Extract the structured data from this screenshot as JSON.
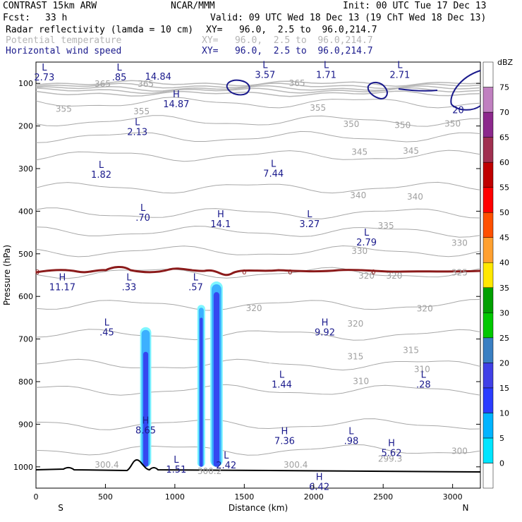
{
  "header": {
    "model": "CONTRAST 15km ARW",
    "fcst_label": "Fcst:",
    "fcst_value": "33 h",
    "center": "NCAR/MMM",
    "init": "Init: 00 UTC Tue 17 Dec 13",
    "valid": "Valid: 09 UTC Wed 18 Dec 13 (19 ChT Wed 18 Dec 13)",
    "fields": [
      {
        "name": "Radar reflectivity (lamda = 10 cm)",
        "xy": "XY=   96.0,  2.5 to  96.0,214.7",
        "color": "#000000"
      },
      {
        "name": "Potential temperature",
        "xy": "XY=   96.0,  2.5 to  96.0,214.7",
        "color": "#b4b4b4"
      },
      {
        "name": "Horizontal wind speed",
        "xy": "XY=   96.0,  2.5 to  96.0,214.7",
        "color": "#1a1a8c"
      }
    ]
  },
  "colorbar": {
    "unit": "dBZ",
    "levels": [
      "0",
      "5",
      "10",
      "15",
      "20",
      "25",
      "30",
      "35",
      "40",
      "45",
      "50",
      "55",
      "60",
      "65",
      "70",
      "75"
    ],
    "colors": [
      "#ffffff",
      "#00e5ff",
      "#00b4ff",
      "#2a3cff",
      "#4040e6",
      "#3a7fc2",
      "#00c800",
      "#00a000",
      "#ffe800",
      "#ffa030",
      "#ff5000",
      "#ff0000",
      "#c00000",
      "#a03050",
      "#8c288c",
      "#c080c0",
      "#ffffff"
    ]
  },
  "chart_data": {
    "type": "contour cross-section",
    "xlabel": "Distance (km)",
    "ylabel": "Pressure (hPa)",
    "x_ticks": [
      "0",
      "500",
      "1000",
      "1500",
      "2000",
      "2500",
      "3000"
    ],
    "x_end_labels": {
      "left": "S",
      "right": "N"
    },
    "y_ticks": [
      "100",
      "200",
      "300",
      "400",
      "500",
      "600",
      "700",
      "800",
      "900",
      "1000"
    ],
    "xlim": [
      0,
      3200
    ],
    "ylim": [
      1050,
      50
    ],
    "theta_labels": [
      {
        "x": 480,
        "p": 101,
        "t": "365"
      },
      {
        "x": 790,
        "p": 101,
        "t": "365"
      },
      {
        "x": 1880,
        "p": 100,
        "t": "365"
      },
      {
        "x": 200,
        "p": 160,
        "t": "355"
      },
      {
        "x": 760,
        "p": 166,
        "t": "355"
      },
      {
        "x": 2030,
        "p": 158,
        "t": "355"
      },
      {
        "x": 2270,
        "p": 196,
        "t": "350"
      },
      {
        "x": 2640,
        "p": 198,
        "t": "350"
      },
      {
        "x": 3000,
        "p": 195,
        "t": "350"
      },
      {
        "x": 2330,
        "p": 261,
        "t": "345"
      },
      {
        "x": 2700,
        "p": 259,
        "t": "345"
      },
      {
        "x": 2320,
        "p": 363,
        "t": "340"
      },
      {
        "x": 2730,
        "p": 366,
        "t": "340"
      },
      {
        "x": 2520,
        "p": 434,
        "t": "335"
      },
      {
        "x": 3050,
        "p": 475,
        "t": "330"
      },
      {
        "x": 2330,
        "p": 494,
        "t": "330"
      },
      {
        "x": 2380,
        "p": 552,
        "t": "320"
      },
      {
        "x": 2580,
        "p": 552,
        "t": "320"
      },
      {
        "x": 3050,
        "p": 544,
        "t": "325"
      },
      {
        "x": 1570,
        "p": 628,
        "t": "320"
      },
      {
        "x": 2800,
        "p": 629,
        "t": "320"
      },
      {
        "x": 2300,
        "p": 664,
        "t": "320"
      },
      {
        "x": 2300,
        "p": 741,
        "t": "315"
      },
      {
        "x": 2700,
        "p": 726,
        "t": "315"
      },
      {
        "x": 2780,
        "p": 771,
        "t": "310"
      },
      {
        "x": 2340,
        "p": 799,
        "t": "310"
      },
      {
        "x": 3050,
        "p": 963,
        "t": "300"
      },
      {
        "x": 510,
        "p": 995,
        "t": "300.4"
      },
      {
        "x": 1250,
        "p": 1010,
        "t": "300.2"
      },
      {
        "x": 1870,
        "p": 995,
        "t": "300.4"
      },
      {
        "x": 2550,
        "p": 981,
        "t": "299.3"
      }
    ],
    "wind_extrema": [
      {
        "x": 60,
        "p": 90,
        "k": "L",
        "v": "2.73"
      },
      {
        "x": 600,
        "p": 90,
        "k": "L",
        "v": ".85"
      },
      {
        "x": 880,
        "p": 88,
        "k": "",
        "v": "14.84"
      },
      {
        "x": 1650,
        "p": 84,
        "k": "L",
        "v": "3.57"
      },
      {
        "x": 2090,
        "p": 84,
        "k": "L",
        "v": "1.71"
      },
      {
        "x": 2620,
        "p": 84,
        "k": "L",
        "v": "2.71"
      },
      {
        "x": 3040,
        "p": 167,
        "k": "",
        "v": "20"
      },
      {
        "x": 1010,
        "p": 153,
        "k": "H",
        "v": "14.87"
      },
      {
        "x": 730,
        "p": 218,
        "k": "L",
        "v": "2.13"
      },
      {
        "x": 470,
        "p": 318,
        "k": "L",
        "v": "1.82"
      },
      {
        "x": 1710,
        "p": 316,
        "k": "L",
        "v": "7.44"
      },
      {
        "x": 770,
        "p": 419,
        "k": "L",
        "v": ".70"
      },
      {
        "x": 1330,
        "p": 434,
        "k": "H",
        "v": "14.1"
      },
      {
        "x": 1970,
        "p": 434,
        "k": "L",
        "v": "3.27"
      },
      {
        "x": 2380,
        "p": 477,
        "k": "L",
        "v": "2.79"
      },
      {
        "x": 190,
        "p": 582,
        "k": "H",
        "v": "11.17"
      },
      {
        "x": 670,
        "p": 582,
        "k": "L",
        "v": ".33"
      },
      {
        "x": 1150,
        "p": 582,
        "k": "L",
        "v": ".57"
      },
      {
        "x": 510,
        "p": 688,
        "k": "L",
        "v": ".45"
      },
      {
        "x": 2080,
        "p": 688,
        "k": "H",
        "v": "9.92"
      },
      {
        "x": 1770,
        "p": 811,
        "k": "L",
        "v": "1.44"
      },
      {
        "x": 2790,
        "p": 811,
        "k": "L",
        "v": ".28"
      },
      {
        "x": 790,
        "p": 918,
        "k": "H",
        "v": "8.65"
      },
      {
        "x": 1790,
        "p": 943,
        "k": "H",
        "v": "7.36"
      },
      {
        "x": 2270,
        "p": 943,
        "k": "L",
        "v": ".98"
      },
      {
        "x": 2560,
        "p": 971,
        "k": "H",
        "v": "5.62"
      },
      {
        "x": 1370,
        "p": 1000,
        "k": "L",
        "v": "2.42"
      },
      {
        "x": 1010,
        "p": 1010,
        "k": "L",
        "v": "1.51"
      },
      {
        "x": 2040,
        "p": 1051,
        "k": "H",
        "v": "6.42"
      }
    ],
    "zero_contour_label": "0",
    "radar_cells": [
      {
        "x": 790,
        "top": 672,
        "core_top": 730,
        "width": 60
      },
      {
        "x": 1190,
        "top": 620,
        "core_top": 650,
        "width": 36
      },
      {
        "x": 1300,
        "top": 565,
        "core_top": 590,
        "width": 70
      }
    ],
    "grid": "off"
  }
}
